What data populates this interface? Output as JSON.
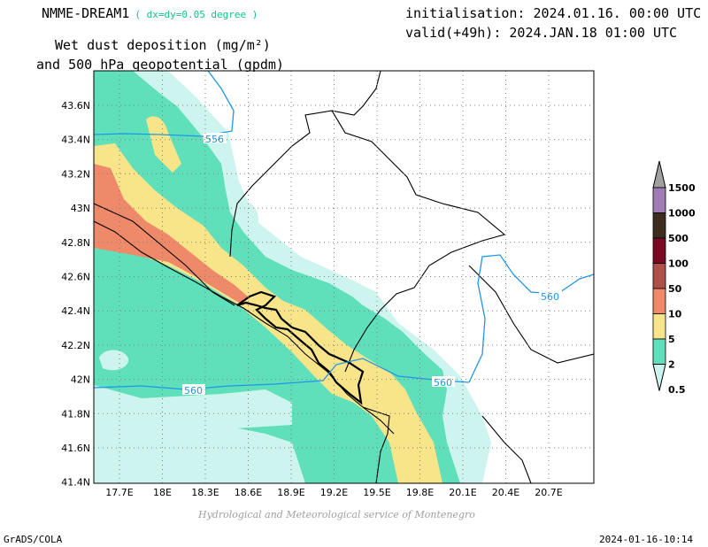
{
  "header": {
    "model": "NMME-DREAM1",
    "resolution": "( dx=dy=0.05 degree )",
    "init": "initialisation: 2024.01.16. 00:00 UTC",
    "valid": "valid(+49h): 2024.JAN.18 01:00 UTC",
    "var_line1": "Wet dust deposition (mg/m²)",
    "var_line2": "and 500 hPa geopotential (gpdm)"
  },
  "map": {
    "lon_ticks": [
      "17.7E",
      "18E",
      "18.3E",
      "18.6E",
      "18.9E",
      "19.2E",
      "19.5E",
      "19.8E",
      "20.1E",
      "20.4E",
      "20.7E"
    ],
    "lat_ticks": [
      "43.6N",
      "43.4N",
      "43.2N",
      "43N",
      "42.8N",
      "42.6N",
      "42.4N",
      "42.2N",
      "42N",
      "41.8N",
      "41.6N",
      "41.4N"
    ],
    "contour_labels": [
      "556",
      "560",
      "560",
      "560"
    ]
  },
  "legend": {
    "levels": [
      {
        "label": "1500",
        "color": "#a0a0a0"
      },
      {
        "label": "1000",
        "color": "#a07cb4"
      },
      {
        "label": "500",
        "color": "#3c2d1e"
      },
      {
        "label": "100",
        "color": "#7a0a23"
      },
      {
        "label": "50",
        "color": "#b0504a"
      },
      {
        "label": "10",
        "color": "#ee8a6a"
      },
      {
        "label": "5",
        "color": "#f8e58a"
      },
      {
        "label": "2",
        "color": "#5fe0bb"
      },
      {
        "label": "0.5",
        "color": "#cdf4ee"
      }
    ]
  },
  "credit": "Hydrological and Meteorological service of Montenegro",
  "footer": {
    "left": "GrADS/COLA",
    "right": "2024-01-16-10:14"
  }
}
